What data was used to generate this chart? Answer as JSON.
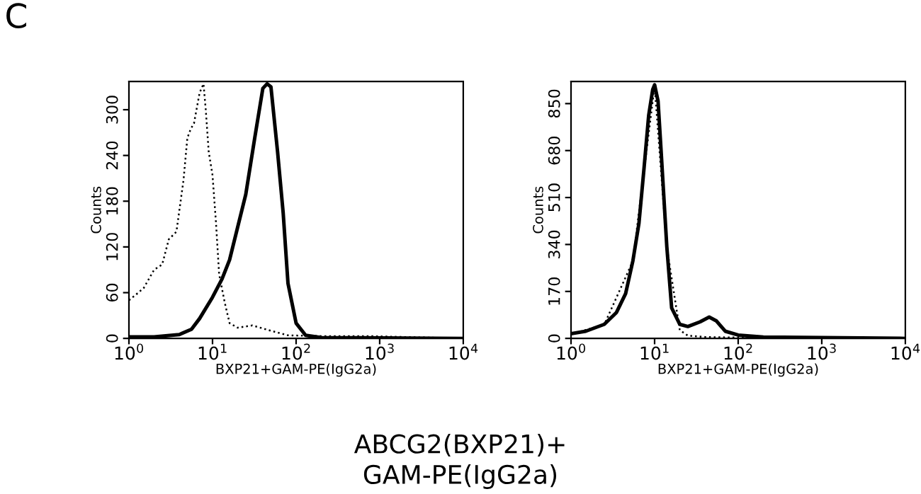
{
  "chart_data": [
    {
      "type": "line",
      "log": "x",
      "xlabel": "BXP21+GAM-PE(IgG2a)",
      "ylabel": "Counts",
      "annotations": [
        "C",
        "ABCG2(BXP21)+\nGAM-PE(IgG2a)"
      ],
      "xlim": [
        1,
        10000
      ],
      "ylim": [
        0,
        337
      ],
      "xticks": [
        {
          "value": 1,
          "label": "10$^{0}$"
        },
        {
          "value": 10,
          "label": "10$^{1}$"
        },
        {
          "value": 100,
          "label": "10$^{2}$"
        },
        {
          "value": 1000,
          "label": "10$^{3}$"
        },
        {
          "value": 10000,
          "label": "10$^{4}$"
        }
      ],
      "yticks": [
        0,
        60,
        120,
        180,
        240,
        300
      ],
      "series": [
        {
          "color": "#000000",
          "line_style": "solid",
          "x": [
            1,
            2,
            4,
            5.6,
            7,
            10,
            13,
            16,
            20,
            25,
            32,
            40,
            45,
            50,
            60,
            70,
            80,
            100,
            130,
            200,
            10000
          ],
          "values": [
            2,
            2,
            5,
            12,
            26,
            54,
            78,
            103,
            146,
            189,
            263,
            328,
            334,
            330,
            245,
            165,
            72,
            20,
            4,
            1,
            0
          ]
        },
        {
          "color": "#000000",
          "line_style": "dotted",
          "x": [
            1,
            1.2,
            1.5,
            2,
            2.5,
            3,
            3.7,
            4.5,
            5,
            5.5,
            6,
            7,
            7.8,
            8.3,
            9,
            10,
            11,
            12,
            14,
            16,
            20,
            30,
            50,
            80,
            200,
            700,
            10000
          ],
          "values": [
            50,
            57,
            66,
            90,
            97,
            130,
            140,
            208,
            263,
            275,
            282,
            322,
            334,
            300,
            245,
            214,
            152,
            84,
            47,
            20,
            14,
            17,
            10,
            4,
            3,
            3,
            0
          ]
        }
      ]
    },
    {
      "type": "line",
      "log": "x",
      "xlabel": "BXP21+GAM-PE(IgG2a)",
      "ylabel": "Counts",
      "xlim": [
        1,
        10000
      ],
      "ylim": [
        0,
        930
      ],
      "xticks": [
        {
          "value": 1,
          "label": "10$^{0}$"
        },
        {
          "value": 10,
          "label": "10$^{1}$"
        },
        {
          "value": 100,
          "label": "10$^{2}$"
        },
        {
          "value": 1000,
          "label": "10$^{3}$"
        },
        {
          "value": 10000,
          "label": "10$^{4}$"
        }
      ],
      "yticks": [
        0,
        170,
        340,
        510,
        680,
        850
      ],
      "series": [
        {
          "color": "#000000",
          "line_style": "dotted",
          "x": [
            1,
            2.5,
            5.5,
            10,
            14,
            20,
            25,
            40,
            100,
            10000
          ],
          "values": [
            15,
            50,
            280,
            915,
            330,
            30,
            10,
            5,
            3,
            0
          ]
        },
        {
          "color": "#000000",
          "line_style": "solid",
          "x": [
            1,
            1.5,
            2.5,
            3.5,
            4.5,
            5.5,
            6.5,
            7.5,
            8.5,
            9.5,
            10,
            11,
            12,
            14,
            16,
            20,
            25,
            35,
            45,
            55,
            70,
            100,
            200,
            1000,
            10000
          ],
          "values": [
            17,
            26,
            51,
            94,
            162,
            281,
            417,
            621,
            808,
            901,
            918,
            859,
            672,
            332,
            110,
            51,
            43,
            60,
            77,
            63,
            26,
            12,
            5,
            3,
            0
          ]
        }
      ]
    }
  ]
}
